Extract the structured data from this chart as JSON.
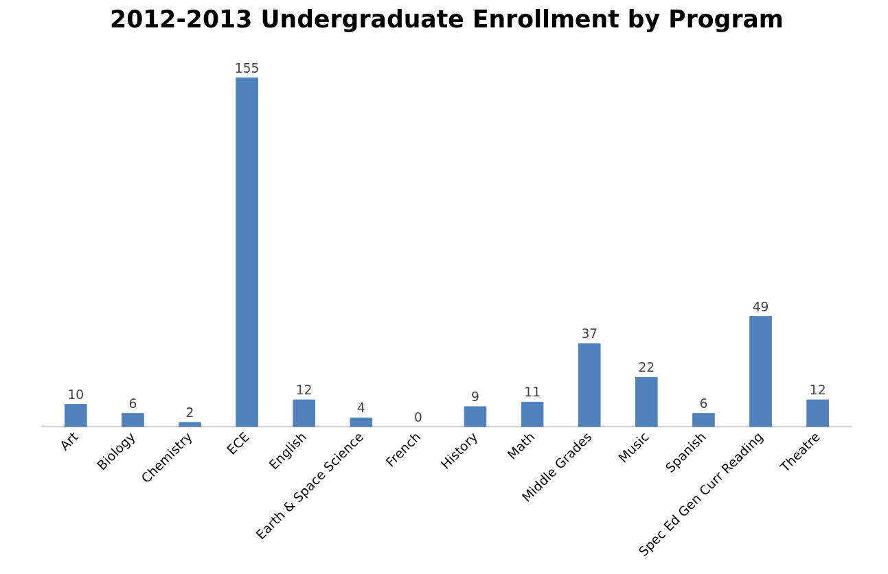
{
  "chart_data": {
    "type": "bar",
    "title": "2012-2013 Undergraduate Enrollment by Program",
    "categories": [
      "Art",
      "Biology",
      "Chemistry",
      "ECE",
      "English",
      "Earth & Space Science",
      "French",
      "History",
      "Math",
      "Middle Grades",
      "Music",
      "Spanish",
      "Spec Ed Gen Curr Reading",
      "Theatre"
    ],
    "values": [
      10,
      6,
      2,
      155,
      12,
      4,
      0,
      9,
      11,
      37,
      22,
      6,
      49,
      12
    ],
    "color": "#4f81bd",
    "data_labels": true,
    "grid": false,
    "tick_labels": "x"
  }
}
